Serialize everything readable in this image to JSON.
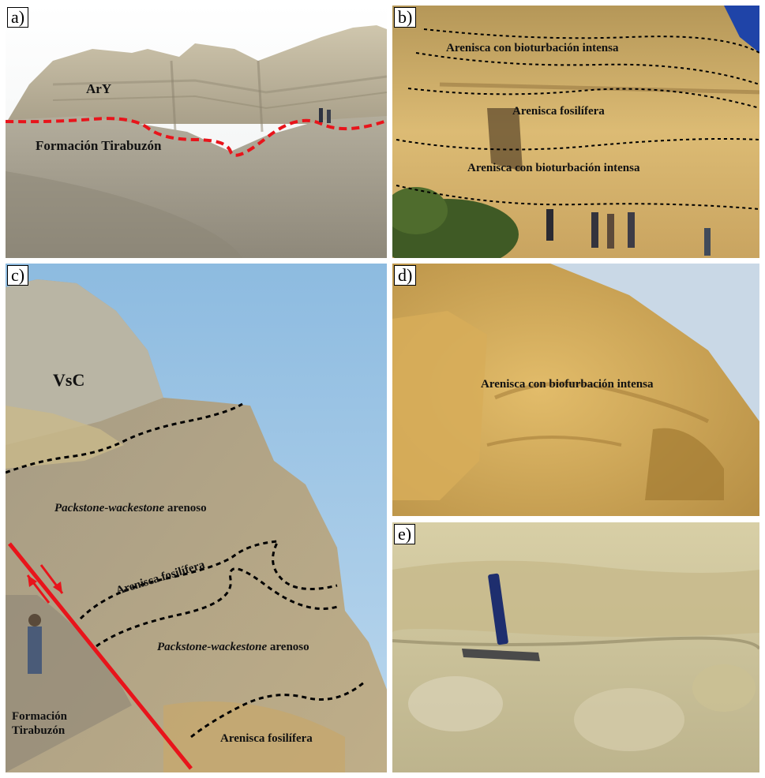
{
  "panels": {
    "a": {
      "label": "a)",
      "annotations": {
        "ary": "ArY",
        "tirabuzon": "Formación Tirabuzón"
      }
    },
    "b": {
      "label": "b)",
      "annotations": {
        "bio_top": "Arenisca con bioturbación intensa",
        "fosil": "Arenisca fosilífera",
        "bio_bottom": "Arenisca con bioturbación intensa"
      }
    },
    "c": {
      "label": "c)",
      "annotations": {
        "vsc": "VsC",
        "pack1_italic": "Packstone-wackestone",
        "pack1_rest": " arenoso",
        "fosil1": "Arenisca fosilífera",
        "pack2_italic": "Packstone-wackestone",
        "pack2_rest": " arenoso",
        "tirabuzon_1": "Formación",
        "tirabuzon_2": "Tirabuzón",
        "fosil2": "Arenisca fosilífera"
      }
    },
    "d": {
      "label": "d)",
      "annotations": {
        "bio": "Arenisca con biofurbación intensa"
      }
    },
    "e": {
      "label": "e)"
    }
  },
  "colors": {
    "contact_line": "#e8141b",
    "fault_line": "#e8141b",
    "horizon_line": "#000000",
    "sky_b": "#1f44a8",
    "sky_c": "#86b6dc",
    "rock_b": "#d8b56a",
    "rock_d": "#d8ae55",
    "rock_e": "#cfc59a"
  }
}
